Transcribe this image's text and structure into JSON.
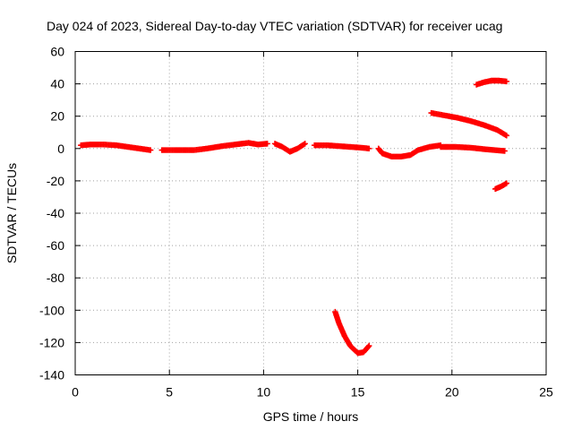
{
  "chart_data": {
    "type": "scatter",
    "title": "Day 024 of 2023, Sidereal Day-to-day VTEC variation (SDTVAR) for receiver ucag",
    "xlabel": "GPS time / hours",
    "ylabel": "SDTVAR / TECUs",
    "xlim": [
      0,
      25
    ],
    "ylim": [
      -140,
      60
    ],
    "xticks": [
      0,
      5,
      10,
      15,
      20,
      25
    ],
    "yticks": [
      -140,
      -120,
      -100,
      -80,
      -60,
      -40,
      -20,
      0,
      20,
      40,
      60
    ],
    "grid": true,
    "marker": "plus",
    "color": "#ff0000",
    "series": [
      {
        "points": [
          [
            0.3,
            2
          ],
          [
            0.8,
            2.5
          ],
          [
            1.5,
            2.5
          ],
          [
            2.2,
            2
          ],
          [
            2.8,
            1
          ],
          [
            3.4,
            0
          ],
          [
            4.0,
            -1
          ]
        ]
      },
      {
        "points": [
          [
            4.6,
            -1
          ],
          [
            5.5,
            -1
          ],
          [
            6.3,
            -1
          ],
          [
            7.0,
            0
          ],
          [
            7.8,
            1.5
          ],
          [
            8.5,
            2.5
          ],
          [
            9.2,
            3.5
          ],
          [
            9.7,
            2.5
          ],
          [
            10.2,
            3
          ]
        ]
      },
      {
        "points": [
          [
            10.6,
            3
          ],
          [
            11.0,
            1
          ],
          [
            11.4,
            -2
          ],
          [
            11.8,
            0
          ],
          [
            12.2,
            3
          ]
        ]
      },
      {
        "points": [
          [
            12.7,
            2
          ],
          [
            13.4,
            2
          ],
          [
            14.0,
            1.5
          ],
          [
            14.6,
            1
          ],
          [
            15.2,
            0.5
          ],
          [
            15.6,
            0
          ]
        ]
      },
      {
        "points": [
          [
            16.1,
            0
          ],
          [
            16.3,
            -3
          ],
          [
            16.8,
            -5
          ],
          [
            17.3,
            -5
          ],
          [
            17.8,
            -4
          ],
          [
            18.2,
            -1
          ],
          [
            18.8,
            1
          ],
          [
            19.4,
            2
          ]
        ]
      },
      {
        "points": [
          [
            19.4,
            1
          ],
          [
            20.2,
            1
          ],
          [
            21.0,
            0.5
          ],
          [
            21.8,
            -0.5
          ],
          [
            22.8,
            -1.5
          ]
        ]
      },
      {
        "points": [
          [
            18.9,
            22
          ],
          [
            19.6,
            20.5
          ],
          [
            20.3,
            19
          ],
          [
            21.0,
            17
          ],
          [
            21.7,
            14.5
          ],
          [
            22.4,
            11.5
          ],
          [
            22.9,
            8
          ]
        ]
      },
      {
        "points": [
          [
            21.3,
            39.5
          ],
          [
            21.7,
            41
          ],
          [
            22.1,
            42
          ],
          [
            22.5,
            42
          ],
          [
            22.9,
            41.5
          ]
        ]
      },
      {
        "points": [
          [
            22.3,
            -25
          ],
          [
            22.6,
            -23.5
          ],
          [
            22.9,
            -21.5
          ]
        ]
      },
      {
        "points": [
          [
            13.8,
            -101
          ],
          [
            14.0,
            -108
          ],
          [
            14.3,
            -116
          ],
          [
            14.6,
            -122
          ],
          [
            15.0,
            -126.5
          ],
          [
            15.3,
            -126
          ],
          [
            15.6,
            -122
          ]
        ]
      }
    ]
  }
}
